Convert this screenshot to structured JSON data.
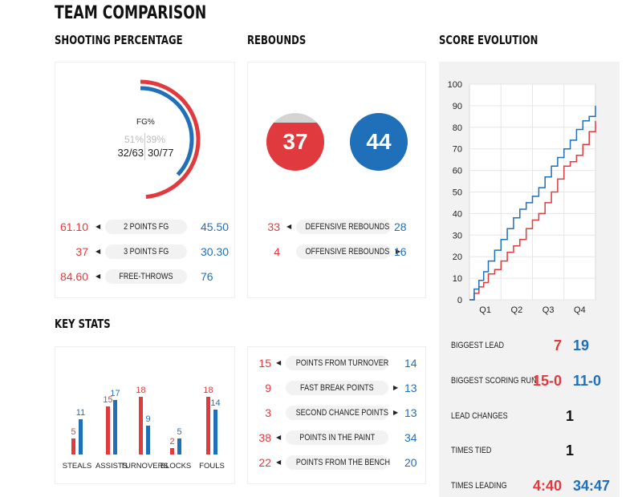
{
  "title": "TEAM COMPARISON",
  "colors": {
    "home": "#e03a3e",
    "away": "#1f6fb9"
  },
  "sections": {
    "shooting": "SHOOTING PERCENTAGE",
    "rebounds": "REBOUNDS",
    "score_evolution": "SCORE EVOLUTION",
    "key_stats": "KEY STATS"
  },
  "fg": {
    "label": "FG%",
    "home_pct": "51%",
    "away_pct": "39%",
    "home_made": "32/63",
    "away_made": "30/77",
    "home_fraction": 0.51,
    "away_fraction": 0.39
  },
  "shooting_rows": [
    {
      "home": "61.10",
      "label": "2 POINTS FG",
      "away": "45.50",
      "arrow": "left"
    },
    {
      "home": "37",
      "label": "3 POINTS FG",
      "away": "30.30",
      "arrow": "left"
    },
    {
      "home": "84.60",
      "label": "FREE-THROWS",
      "away": "76",
      "arrow": "left"
    }
  ],
  "rebounds": {
    "home_total": "37",
    "away_total": "44",
    "home_fill": 0.84,
    "away_fill": 1.0,
    "rows": [
      {
        "home": "33",
        "label": "DEFENSIVE REBOUNDS",
        "away": "28",
        "arrow": "left"
      },
      {
        "home": "4",
        "label": "OFFENSIVE REBOUNDS",
        "away": "16",
        "arrow": "right"
      }
    ]
  },
  "points_rows": [
    {
      "home": "15",
      "label": "POINTS FROM TURNOVER",
      "away": "14",
      "arrow": "left"
    },
    {
      "home": "9",
      "label": "FAST BREAK POINTS",
      "away": "13",
      "arrow": "right"
    },
    {
      "home": "3",
      "label": "SECOND CHANCE POINTS",
      "away": "13",
      "arrow": "right"
    },
    {
      "home": "38",
      "label": "POINTS IN THE PAINT",
      "away": "34",
      "arrow": "left"
    },
    {
      "home": "22",
      "label": "POINTS FROM THE BENCH",
      "away": "20",
      "arrow": "left"
    }
  ],
  "game_stats": [
    {
      "label": "BIGGEST LEAD",
      "home": "7",
      "away": "19"
    },
    {
      "label": "BIGGEST SCORING RUN",
      "home": "15-0",
      "away": "11-0"
    },
    {
      "label": "LEAD CHANGES",
      "value": "1"
    },
    {
      "label": "TIMES TIED",
      "value": "1"
    },
    {
      "label": "TIMES LEADING",
      "home": "4:40",
      "away": "34:47"
    }
  ],
  "chart_data": [
    {
      "type": "bar",
      "title": "KEY STATS",
      "categories": [
        "STEALS",
        "ASSISTS",
        "TURNOVERS",
        "BLOCKS",
        "FOULS"
      ],
      "series": [
        {
          "name": "home",
          "values": [
            5,
            15,
            18,
            2,
            18
          ]
        },
        {
          "name": "away",
          "values": [
            11,
            17,
            9,
            5,
            14
          ]
        }
      ],
      "ylim": [
        0,
        18
      ]
    },
    {
      "type": "line",
      "title": "SCORE EVOLUTION",
      "x_tick_labels": [
        "Q1",
        "Q2",
        "Q3",
        "Q4"
      ],
      "xlim": [
        0,
        40
      ],
      "ylim": [
        0,
        100
      ],
      "y_ticks": [
        0,
        10,
        20,
        30,
        40,
        50,
        60,
        70,
        80,
        90,
        100
      ],
      "grid": true,
      "series": [
        {
          "name": "home",
          "x": [
            0,
            1.5,
            3,
            4.5,
            6,
            8,
            10,
            12,
            14,
            16,
            18,
            20,
            22,
            24,
            26,
            28,
            30,
            32,
            34,
            36,
            38,
            40
          ],
          "y": [
            0,
            3,
            6,
            8,
            12,
            14,
            18,
            22,
            25,
            28,
            33,
            37,
            40,
            45,
            50,
            56,
            62,
            64,
            67,
            72,
            78,
            83
          ]
        },
        {
          "name": "away",
          "x": [
            0,
            1.5,
            3,
            4.5,
            6,
            8,
            10,
            12,
            14,
            16,
            18,
            20,
            22,
            24,
            26,
            28,
            30,
            32,
            34,
            36,
            38,
            40
          ],
          "y": [
            0,
            5,
            9,
            13,
            18,
            23,
            28,
            33,
            38,
            42,
            45,
            48,
            52,
            57,
            62,
            66,
            70,
            74,
            79,
            83,
            85,
            90
          ]
        }
      ]
    }
  ]
}
